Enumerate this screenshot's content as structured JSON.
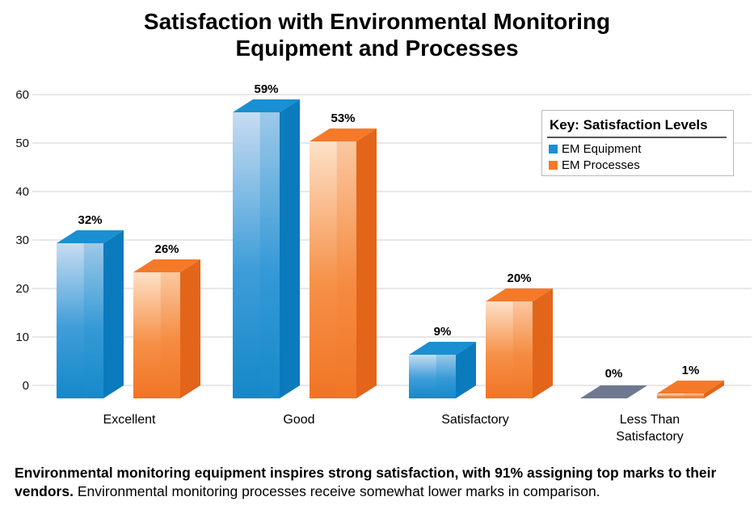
{
  "chart_data": {
    "type": "bar",
    "title": [
      "Satisfaction with Environmental Monitoring",
      "Equipment and Processes"
    ],
    "categories": [
      "Excellent",
      "Good",
      "Satisfactory",
      "Less Than Satisfactory"
    ],
    "category_lines": [
      [
        "Excellent"
      ],
      [
        "Good"
      ],
      [
        "Satisfactory"
      ],
      [
        "Less Than",
        "Satisfactory"
      ]
    ],
    "series": [
      {
        "name": "EM Equipment",
        "values": [
          32,
          59,
          9,
          0
        ],
        "labels": [
          "32%",
          "59%",
          "9%",
          "0%"
        ],
        "color": "#1a8fd1"
      },
      {
        "name": "EM Processes",
        "values": [
          26,
          53,
          20,
          1
        ],
        "labels": [
          "26%",
          "53%",
          "20%",
          "1%"
        ],
        "color": "#f47a2a"
      }
    ],
    "yticks": [
      0,
      10,
      20,
      30,
      40,
      50,
      60
    ],
    "ylim": [
      0,
      60
    ],
    "grid": true,
    "legend": {
      "title": "Key: Satisfaction Levels",
      "position": "top-right"
    }
  },
  "caption": {
    "bold": "Environmental monitoring equipment inspires strong satisfaction, with 91% assigning top marks to their vendors.",
    "normal": " Environmental monitoring processes receive somewhat lower marks in comparison."
  },
  "colors": {
    "equipment": "#1a8fd1",
    "processes": "#f47a2a",
    "zero_bar": "#6f7891"
  }
}
